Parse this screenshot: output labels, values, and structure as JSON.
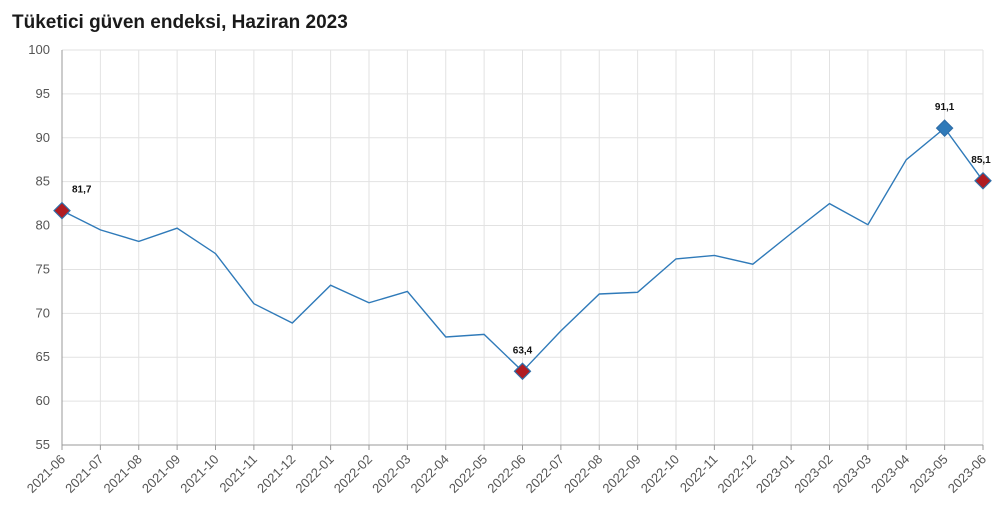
{
  "chart_data": {
    "type": "line",
    "title": "Tüketici güven endeksi, Haziran 2023",
    "xlabel": "",
    "ylabel": "",
    "ylim": [
      55,
      100
    ],
    "yticks": [
      55,
      60,
      65,
      70,
      75,
      80,
      85,
      90,
      95,
      100
    ],
    "grid": true,
    "categories": [
      "2021-06",
      "2021-07",
      "2021-08",
      "2021-09",
      "2021-10",
      "2021-11",
      "2021-12",
      "2022-01",
      "2022-02",
      "2022-03",
      "2022-04",
      "2022-05",
      "2022-06",
      "2022-07",
      "2022-08",
      "2022-09",
      "2022-10",
      "2022-11",
      "2022-12",
      "2023-01",
      "2023-02",
      "2023-03",
      "2023-04",
      "2023-05",
      "2023-06"
    ],
    "series": [
      {
        "values": [
          81.7,
          79.5,
          78.2,
          79.7,
          76.8,
          71.1,
          68.9,
          73.2,
          71.2,
          72.5,
          67.3,
          67.6,
          63.4,
          68.0,
          72.2,
          72.4,
          76.2,
          76.6,
          75.6,
          79.1,
          82.5,
          80.1,
          87.5,
          91.1,
          85.1
        ],
        "color": "#2f7ab9"
      }
    ],
    "markers": [
      {
        "index": 0,
        "label": "81,7",
        "color": "#b01c22"
      },
      {
        "index": 12,
        "label": "63,4",
        "color": "#b01c22"
      },
      {
        "index": 23,
        "label": "91,1",
        "color": "#2f7ab9"
      },
      {
        "index": 24,
        "label": "85,1",
        "color": "#b01c22"
      }
    ]
  }
}
